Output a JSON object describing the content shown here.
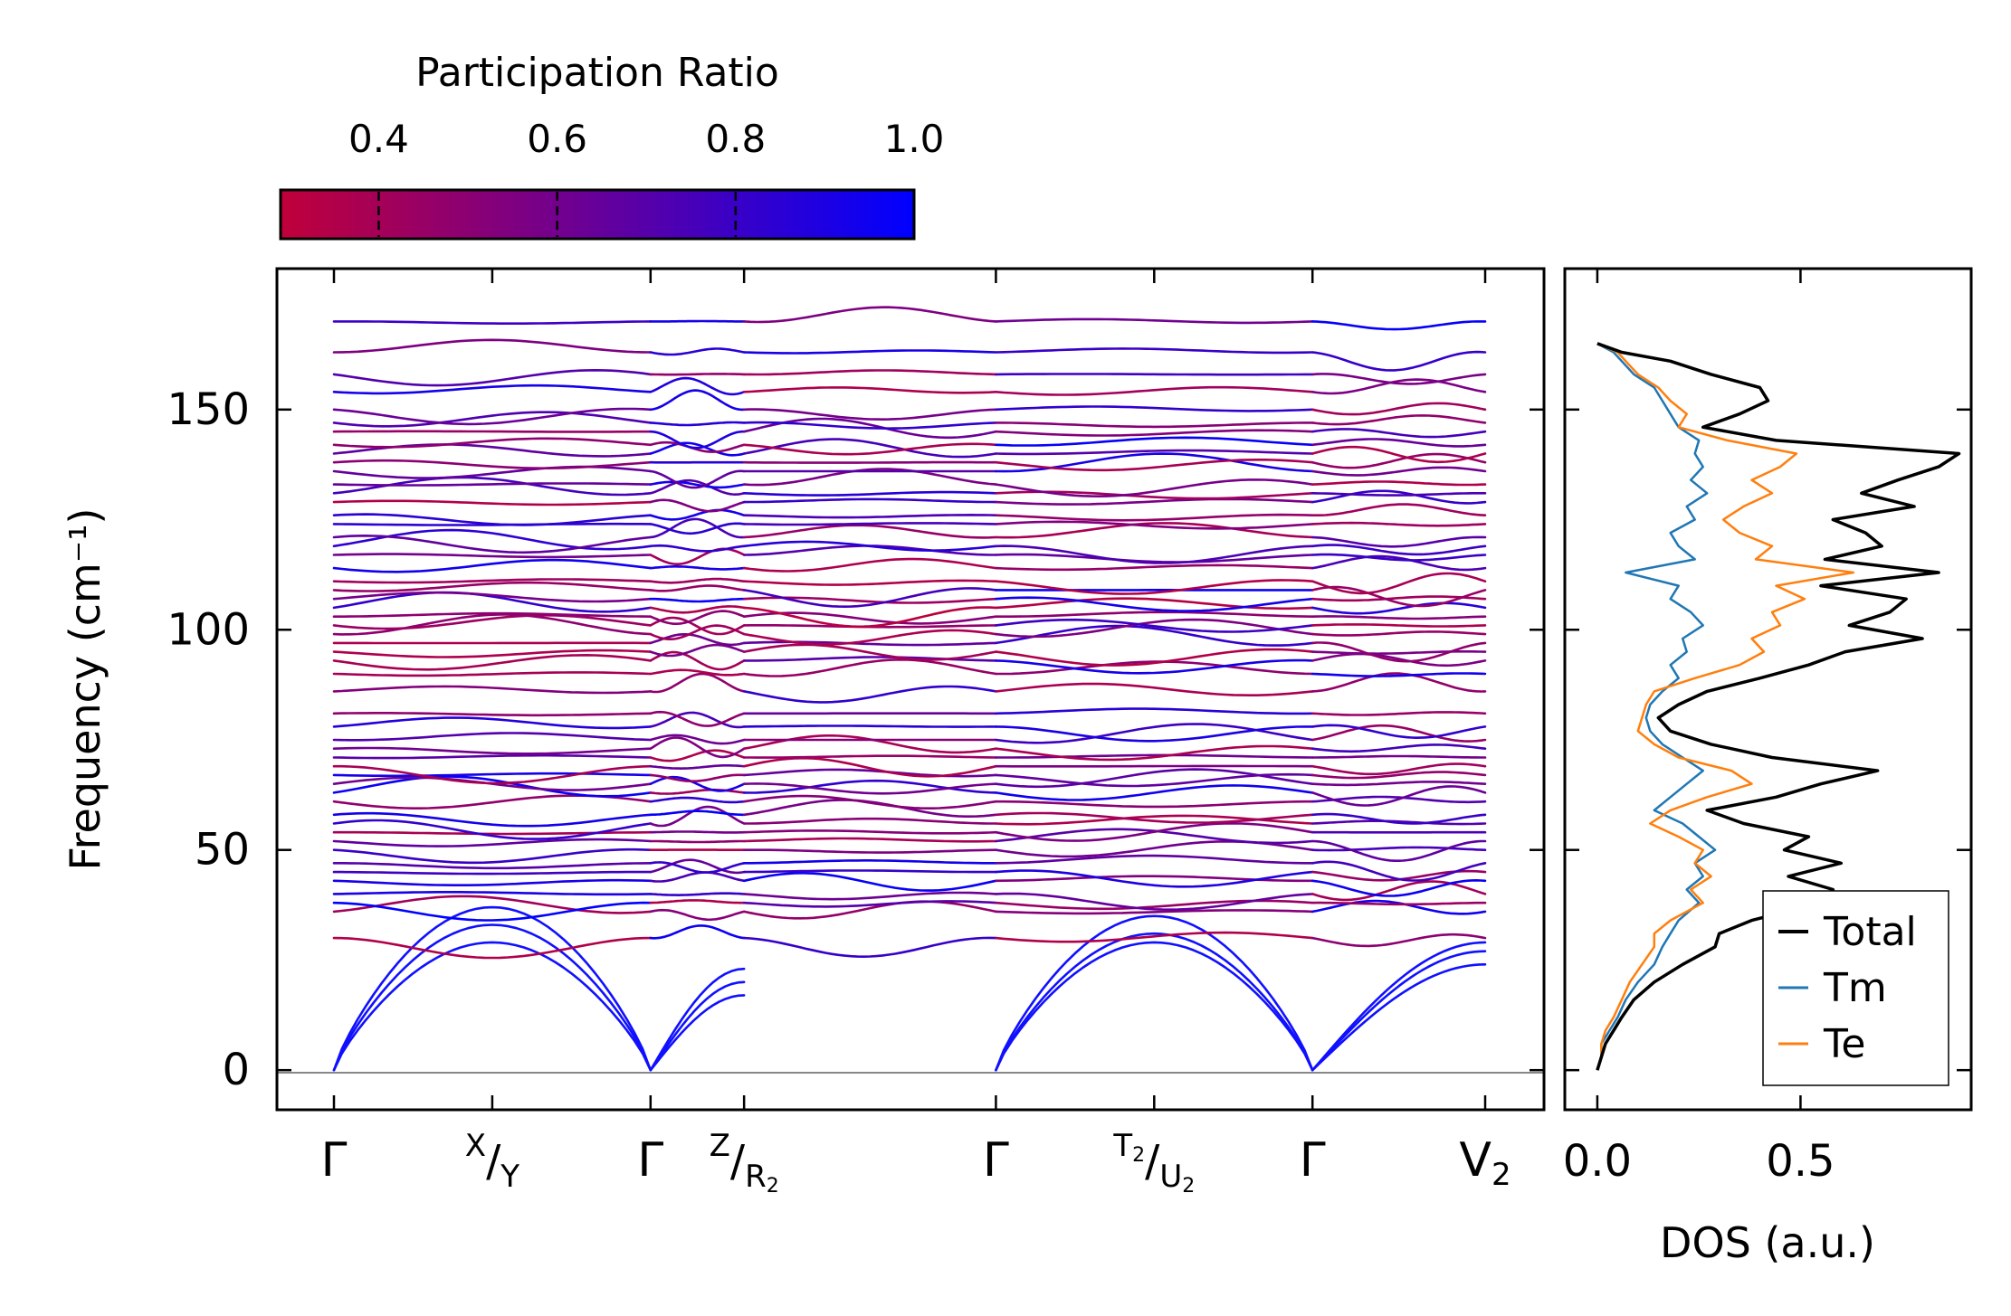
{
  "chart_data": {
    "type": "line",
    "colorbar": {
      "title": "Participation Ratio",
      "ticks": [
        "0.4",
        "0.6",
        "0.8",
        "1.0"
      ],
      "tick_values": [
        0.4,
        0.6,
        0.8,
        1.0
      ],
      "range": [
        0.29,
        1.0
      ],
      "colors": {
        "low": "#c0003a",
        "mid": "#700090",
        "high": "#0000ff"
      }
    },
    "band_panel": {
      "ylabel": "Frequency (cm⁻¹)",
      "ylim": [
        -9,
        182
      ],
      "yticks": [
        0,
        50,
        100,
        150
      ],
      "ytick_labels": [
        "0",
        "50",
        "100",
        "150"
      ],
      "path_labels": [
        {
          "main": "Γ"
        },
        {
          "main": "",
          "sup_a": "X",
          "sub_b": "Y"
        },
        {
          "main": "Γ"
        },
        {
          "main": "",
          "sup_a": "Z",
          "sub_b": "R",
          "sub_b_idx": "2"
        },
        {
          "main": "Γ"
        },
        {
          "main": "",
          "sup_a": "T",
          "sup_a_idx": "2",
          "sub_b": "U",
          "sub_b_idx": "2"
        },
        {
          "main": "Γ"
        },
        {
          "main": "V",
          "main_idx": "2"
        }
      ],
      "k_positions": [
        0,
        1.1,
        2.2,
        2.85,
        4.6,
        5.7,
        6.8,
        8.0
      ],
      "segments": [
        [
          0,
          2.2
        ],
        [
          2.2,
          2.85
        ],
        [
          2.85,
          4.6
        ],
        [
          4.6,
          6.8
        ],
        [
          6.8,
          8.0
        ]
      ],
      "acoustic": {
        "X": [
          0,
          1.1,
          2.2,
          2.85,
          4.6,
          5.7,
          6.8,
          8.0
        ],
        "mid_freqs": [
          [
            29,
            33,
            37
          ],
          [
            17,
            20,
            23
          ],
          [
            29,
            31,
            35
          ]
        ]
      },
      "optical_frequencies": [
        30,
        36,
        38,
        40,
        43,
        45,
        47,
        50,
        52,
        54,
        56,
        58,
        61,
        63,
        65,
        67,
        69,
        71,
        73,
        75,
        78,
        81,
        86,
        90,
        93,
        95,
        97,
        99,
        101,
        103,
        105,
        107,
        109,
        111,
        114,
        117,
        119,
        121,
        124,
        126,
        129,
        131,
        133,
        136,
        138,
        140,
        142,
        145,
        147,
        150,
        154,
        158,
        163,
        170
      ]
    },
    "dos_panel": {
      "xlabel": "DOS (a.u.)",
      "xlim": [
        -0.08,
        0.92
      ],
      "xticks": [
        0.0,
        0.5
      ],
      "xtick_labels": [
        "0.0",
        "0.5"
      ],
      "series": [
        {
          "name": "Total",
          "color": "#000000",
          "freq": [
            0,
            3,
            6,
            9,
            12,
            16,
            20,
            24,
            28,
            31,
            34,
            38,
            41,
            44,
            47,
            50,
            53,
            56,
            59,
            62,
            65,
            68,
            71,
            74,
            77,
            80,
            83,
            86,
            89,
            92,
            95,
            98,
            101,
            104,
            107,
            110,
            113,
            116,
            119,
            122,
            125,
            128,
            131,
            134,
            137,
            140,
            143,
            146,
            149,
            152,
            155,
            158,
            161,
            163,
            165
          ],
          "dos": [
            0.0,
            0.01,
            0.02,
            0.04,
            0.06,
            0.09,
            0.14,
            0.21,
            0.29,
            0.3,
            0.38,
            0.55,
            0.58,
            0.47,
            0.6,
            0.46,
            0.52,
            0.36,
            0.27,
            0.44,
            0.55,
            0.69,
            0.43,
            0.28,
            0.18,
            0.15,
            0.2,
            0.27,
            0.4,
            0.52,
            0.61,
            0.8,
            0.62,
            0.72,
            0.76,
            0.55,
            0.84,
            0.56,
            0.7,
            0.66,
            0.58,
            0.78,
            0.65,
            0.74,
            0.84,
            0.89,
            0.44,
            0.26,
            0.35,
            0.42,
            0.4,
            0.28,
            0.18,
            0.06,
            0.0
          ]
        },
        {
          "name": "Tm",
          "color": "#1f77b4",
          "freq": [
            0,
            3,
            6,
            9,
            12,
            16,
            20,
            24,
            28,
            31,
            34,
            38,
            41,
            44,
            47,
            50,
            53,
            56,
            59,
            62,
            65,
            68,
            71,
            74,
            77,
            80,
            83,
            86,
            89,
            92,
            95,
            98,
            101,
            104,
            107,
            110,
            113,
            116,
            119,
            122,
            125,
            128,
            131,
            134,
            137,
            140,
            143,
            146,
            149,
            152,
            155,
            158,
            161,
            163,
            165
          ],
          "dos": [
            0.0,
            0.01,
            0.01,
            0.03,
            0.05,
            0.07,
            0.1,
            0.14,
            0.16,
            0.18,
            0.2,
            0.25,
            0.22,
            0.26,
            0.24,
            0.29,
            0.25,
            0.21,
            0.14,
            0.18,
            0.22,
            0.26,
            0.21,
            0.16,
            0.13,
            0.12,
            0.13,
            0.16,
            0.2,
            0.18,
            0.22,
            0.21,
            0.26,
            0.23,
            0.18,
            0.2,
            0.07,
            0.24,
            0.2,
            0.18,
            0.24,
            0.22,
            0.27,
            0.23,
            0.26,
            0.24,
            0.25,
            0.2,
            0.18,
            0.16,
            0.14,
            0.09,
            0.06,
            0.04,
            0.0
          ]
        },
        {
          "name": "Te",
          "color": "#ff7f0e",
          "freq": [
            0,
            3,
            6,
            9,
            12,
            16,
            20,
            24,
            28,
            31,
            34,
            38,
            41,
            44,
            47,
            50,
            53,
            56,
            59,
            62,
            65,
            68,
            71,
            74,
            77,
            80,
            83,
            86,
            89,
            92,
            95,
            98,
            101,
            104,
            107,
            110,
            113,
            116,
            119,
            122,
            125,
            128,
            131,
            134,
            137,
            140,
            143,
            146,
            149,
            152,
            155,
            158,
            161,
            163,
            165
          ],
          "dos": [
            0.0,
            0.01,
            0.01,
            0.02,
            0.04,
            0.06,
            0.08,
            0.11,
            0.14,
            0.14,
            0.18,
            0.26,
            0.23,
            0.28,
            0.24,
            0.26,
            0.2,
            0.13,
            0.18,
            0.27,
            0.38,
            0.33,
            0.2,
            0.14,
            0.1,
            0.11,
            0.12,
            0.14,
            0.24,
            0.35,
            0.41,
            0.38,
            0.45,
            0.43,
            0.51,
            0.44,
            0.63,
            0.39,
            0.43,
            0.35,
            0.31,
            0.36,
            0.43,
            0.38,
            0.45,
            0.49,
            0.32,
            0.2,
            0.22,
            0.18,
            0.15,
            0.1,
            0.07,
            0.05,
            0.0
          ]
        }
      ]
    }
  }
}
